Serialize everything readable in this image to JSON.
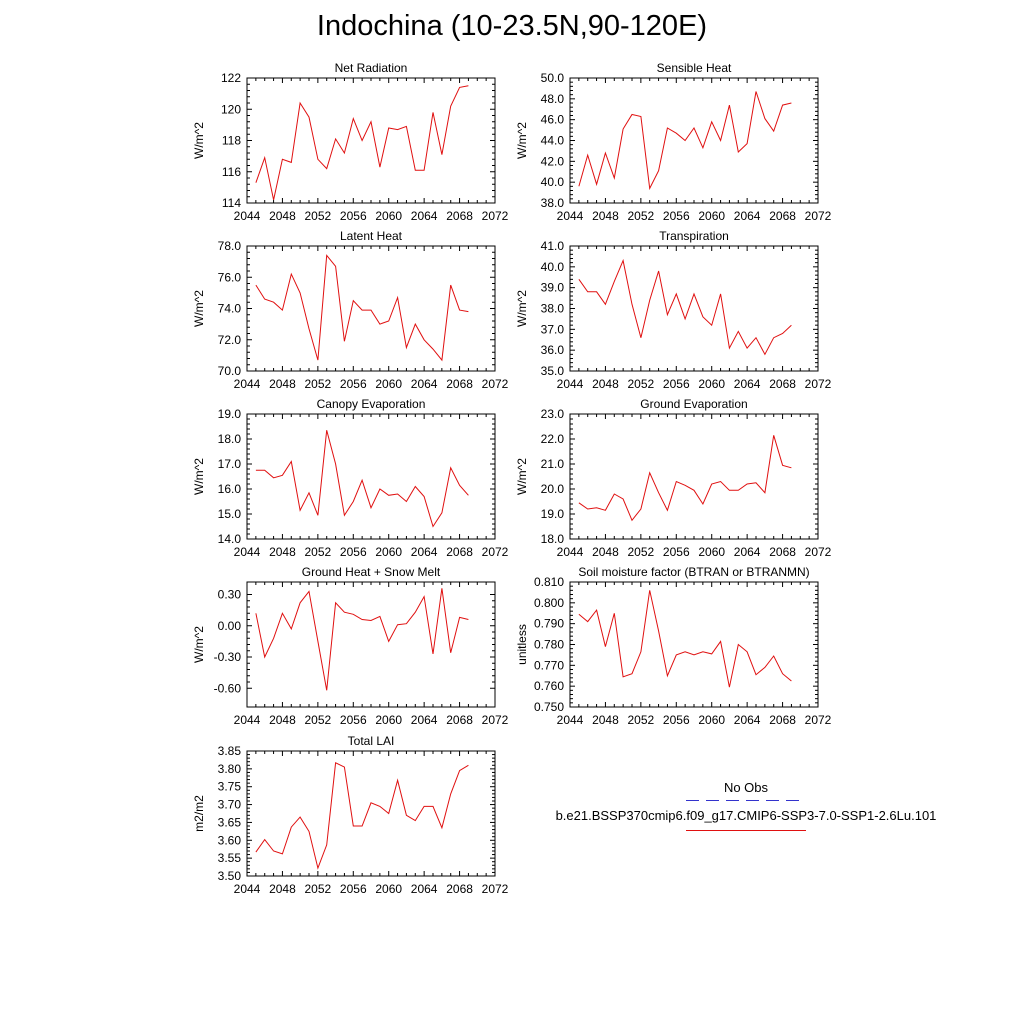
{
  "page": {
    "title": "Indochina (10-23.5N,90-120E)"
  },
  "legend": {
    "obs_label": "No Obs",
    "case_label": "b.e21.BSSP370cmip6.f09_g17.CMIP6-SSP3-7.0-SSP1-2.6Lu.101",
    "obs_color": "#3333cc",
    "case_color": "#e01010"
  },
  "chart_data": [
    {
      "type": "line",
      "title": "Net Radiation",
      "ylabel": "W/m^2",
      "xlim": [
        2044,
        2072
      ],
      "xticks": [
        2044,
        2048,
        2052,
        2056,
        2060,
        2064,
        2068,
        2072
      ],
      "ylim": [
        114,
        122
      ],
      "yticks": [
        "114",
        "116",
        "118",
        "120",
        "122"
      ],
      "x": [
        2045,
        2046,
        2047,
        2048,
        2049,
        2050,
        2051,
        2052,
        2053,
        2054,
        2055,
        2056,
        2057,
        2058,
        2059,
        2060,
        2061,
        2062,
        2063,
        2064,
        2065,
        2066,
        2067,
        2068,
        2069
      ],
      "series": [
        {
          "values": [
            115.3,
            116.9,
            114.2,
            116.8,
            116.6,
            120.4,
            119.5,
            116.8,
            116.2,
            118.1,
            117.2,
            119.4,
            118.0,
            119.2,
            116.3,
            118.8,
            118.7,
            118.9,
            116.1,
            116.1,
            119.8,
            117.1,
            120.2,
            121.4,
            121.5
          ]
        }
      ]
    },
    {
      "type": "line",
      "title": "Sensible Heat",
      "ylabel": "W/m^2",
      "xlim": [
        2044,
        2072
      ],
      "xticks": [
        2044,
        2048,
        2052,
        2056,
        2060,
        2064,
        2068,
        2072
      ],
      "ylim": [
        38,
        50
      ],
      "yticks": [
        "38.0",
        "40.0",
        "42.0",
        "44.0",
        "46.0",
        "48.0",
        "50.0"
      ],
      "x": [
        2045,
        2046,
        2047,
        2048,
        2049,
        2050,
        2051,
        2052,
        2053,
        2054,
        2055,
        2056,
        2057,
        2058,
        2059,
        2060,
        2061,
        2062,
        2063,
        2064,
        2065,
        2066,
        2067,
        2068,
        2069
      ],
      "series": [
        {
          "values": [
            39.6,
            42.6,
            39.8,
            42.8,
            40.4,
            45.1,
            46.5,
            46.3,
            39.4,
            41.1,
            45.2,
            44.7,
            44.0,
            45.2,
            43.3,
            45.8,
            44.0,
            47.4,
            42.9,
            43.7,
            48.7,
            46.1,
            44.9,
            47.4,
            47.6
          ]
        }
      ]
    },
    {
      "type": "line",
      "title": "Latent Heat",
      "ylabel": "W/m^2",
      "xlim": [
        2044,
        2072
      ],
      "xticks": [
        2044,
        2048,
        2052,
        2056,
        2060,
        2064,
        2068,
        2072
      ],
      "ylim": [
        70,
        78
      ],
      "yticks": [
        "70.0",
        "72.0",
        "74.0",
        "76.0",
        "78.0"
      ],
      "x": [
        2045,
        2046,
        2047,
        2048,
        2049,
        2050,
        2051,
        2052,
        2053,
        2054,
        2055,
        2056,
        2057,
        2058,
        2059,
        2060,
        2061,
        2062,
        2063,
        2064,
        2065,
        2066,
        2067,
        2068,
        2069
      ],
      "series": [
        {
          "values": [
            75.5,
            74.6,
            74.4,
            73.9,
            76.2,
            75.0,
            72.7,
            70.7,
            77.4,
            76.7,
            71.9,
            74.5,
            73.9,
            73.9,
            73.0,
            73.2,
            74.7,
            71.5,
            73.0,
            72.0,
            71.4,
            70.7,
            75.5,
            73.9,
            73.8
          ]
        }
      ]
    },
    {
      "type": "line",
      "title": "Transpiration",
      "ylabel": "W/m^2",
      "xlim": [
        2044,
        2072
      ],
      "xticks": [
        2044,
        2048,
        2052,
        2056,
        2060,
        2064,
        2068,
        2072
      ],
      "ylim": [
        35,
        41
      ],
      "yticks": [
        "35.0",
        "36.0",
        "37.0",
        "38.0",
        "39.0",
        "40.0",
        "41.0"
      ],
      "x": [
        2045,
        2046,
        2047,
        2048,
        2049,
        2050,
        2051,
        2052,
        2053,
        2054,
        2055,
        2056,
        2057,
        2058,
        2059,
        2060,
        2061,
        2062,
        2063,
        2064,
        2065,
        2066,
        2067,
        2068,
        2069
      ],
      "series": [
        {
          "values": [
            39.4,
            38.8,
            38.8,
            38.2,
            39.3,
            40.3,
            38.2,
            36.6,
            38.4,
            39.8,
            37.7,
            38.7,
            37.5,
            38.7,
            37.6,
            37.2,
            38.7,
            36.1,
            36.9,
            36.1,
            36.6,
            35.8,
            36.6,
            36.8,
            37.2
          ]
        }
      ]
    },
    {
      "type": "line",
      "title": "Canopy Evaporation",
      "ylabel": "W/m^2",
      "xlim": [
        2044,
        2072
      ],
      "xticks": [
        2044,
        2048,
        2052,
        2056,
        2060,
        2064,
        2068,
        2072
      ],
      "ylim": [
        14,
        19
      ],
      "yticks": [
        "14.0",
        "15.0",
        "16.0",
        "17.0",
        "18.0",
        "19.0"
      ],
      "x": [
        2045,
        2046,
        2047,
        2048,
        2049,
        2050,
        2051,
        2052,
        2053,
        2054,
        2055,
        2056,
        2057,
        2058,
        2059,
        2060,
        2061,
        2062,
        2063,
        2064,
        2065,
        2066,
        2067,
        2068,
        2069
      ],
      "series": [
        {
          "values": [
            16.75,
            16.75,
            16.45,
            16.55,
            17.1,
            15.15,
            15.85,
            14.95,
            18.35,
            17.0,
            14.95,
            15.5,
            16.35,
            15.25,
            16.0,
            15.75,
            15.8,
            15.5,
            16.1,
            15.7,
            14.5,
            15.05,
            16.85,
            16.15,
            15.75
          ]
        }
      ]
    },
    {
      "type": "line",
      "title": "Ground Evaporation",
      "ylabel": "W/m^2",
      "xlim": [
        2044,
        2072
      ],
      "xticks": [
        2044,
        2048,
        2052,
        2056,
        2060,
        2064,
        2068,
        2072
      ],
      "ylim": [
        18,
        23
      ],
      "yticks": [
        "18.0",
        "19.0",
        "20.0",
        "21.0",
        "22.0",
        "23.0"
      ],
      "x": [
        2045,
        2046,
        2047,
        2048,
        2049,
        2050,
        2051,
        2052,
        2053,
        2054,
        2055,
        2056,
        2057,
        2058,
        2059,
        2060,
        2061,
        2062,
        2063,
        2064,
        2065,
        2066,
        2067,
        2068,
        2069
      ],
      "series": [
        {
          "values": [
            19.45,
            19.2,
            19.25,
            19.15,
            19.8,
            19.6,
            18.75,
            19.2,
            20.65,
            19.85,
            19.15,
            20.3,
            20.15,
            19.95,
            19.4,
            20.2,
            20.3,
            19.95,
            19.95,
            20.2,
            20.25,
            19.85,
            22.15,
            20.95,
            20.85
          ]
        }
      ]
    },
    {
      "type": "line",
      "title": "Ground Heat + Snow Melt",
      "ylabel": "W/m^2",
      "xlim": [
        2044,
        2072
      ],
      "xticks": [
        2044,
        2048,
        2052,
        2056,
        2060,
        2064,
        2068,
        2072
      ],
      "ylim": [
        -0.78,
        0.42
      ],
      "yticks": [
        "-0.60",
        "-0.30",
        "0.00",
        "0.30"
      ],
      "ytick_values": [
        -0.6,
        -0.3,
        0.0,
        0.3
      ],
      "x": [
        2045,
        2046,
        2047,
        2048,
        2049,
        2050,
        2051,
        2052,
        2053,
        2054,
        2055,
        2056,
        2057,
        2058,
        2059,
        2060,
        2061,
        2062,
        2063,
        2064,
        2065,
        2066,
        2067,
        2068,
        2069
      ],
      "series": [
        {
          "values": [
            0.12,
            -0.3,
            -0.12,
            0.12,
            -0.03,
            0.22,
            0.33,
            -0.15,
            -0.62,
            0.22,
            0.13,
            0.11,
            0.06,
            0.05,
            0.09,
            -0.15,
            0.01,
            0.02,
            0.13,
            0.28,
            -0.27,
            0.36,
            -0.26,
            0.08,
            0.06
          ]
        }
      ]
    },
    {
      "type": "line",
      "title": "Soil moisture factor (BTRAN or BTRANMN)",
      "ylabel": "unitless",
      "xlim": [
        2044,
        2072
      ],
      "xticks": [
        2044,
        2048,
        2052,
        2056,
        2060,
        2064,
        2068,
        2072
      ],
      "ylim": [
        0.75,
        0.81
      ],
      "yticks": [
        "0.750",
        "0.760",
        "0.770",
        "0.780",
        "0.790",
        "0.800",
        "0.810"
      ],
      "x": [
        2045,
        2046,
        2047,
        2048,
        2049,
        2050,
        2051,
        2052,
        2053,
        2054,
        2055,
        2056,
        2057,
        2058,
        2059,
        2060,
        2061,
        2062,
        2063,
        2064,
        2065,
        2066,
        2067,
        2068,
        2069
      ],
      "series": [
        {
          "values": [
            0.7945,
            0.791,
            0.7965,
            0.779,
            0.795,
            0.7645,
            0.766,
            0.7765,
            0.806,
            0.7865,
            0.765,
            0.775,
            0.7765,
            0.775,
            0.7765,
            0.7755,
            0.7815,
            0.7595,
            0.78,
            0.7765,
            0.7655,
            0.769,
            0.7745,
            0.766,
            0.7625
          ]
        }
      ]
    },
    {
      "type": "line",
      "title": "Total LAI",
      "ylabel": "m2/m2",
      "xlim": [
        2044,
        2072
      ],
      "xticks": [
        2044,
        2048,
        2052,
        2056,
        2060,
        2064,
        2068,
        2072
      ],
      "ylim": [
        3.5,
        3.85
      ],
      "yticks": [
        "3.50",
        "3.55",
        "3.60",
        "3.65",
        "3.70",
        "3.75",
        "3.80",
        "3.85"
      ],
      "x": [
        2045,
        2046,
        2047,
        2048,
        2049,
        2050,
        2051,
        2052,
        2053,
        2054,
        2055,
        2056,
        2057,
        2058,
        2059,
        2060,
        2061,
        2062,
        2063,
        2064,
        2065,
        2066,
        2067,
        2068,
        2069
      ],
      "series": [
        {
          "values": [
            3.567,
            3.602,
            3.57,
            3.562,
            3.637,
            3.665,
            3.625,
            3.522,
            3.587,
            3.817,
            3.805,
            3.64,
            3.64,
            3.705,
            3.695,
            3.675,
            3.768,
            3.67,
            3.655,
            3.695,
            3.695,
            3.635,
            3.73,
            3.795,
            3.81
          ]
        }
      ]
    }
  ]
}
